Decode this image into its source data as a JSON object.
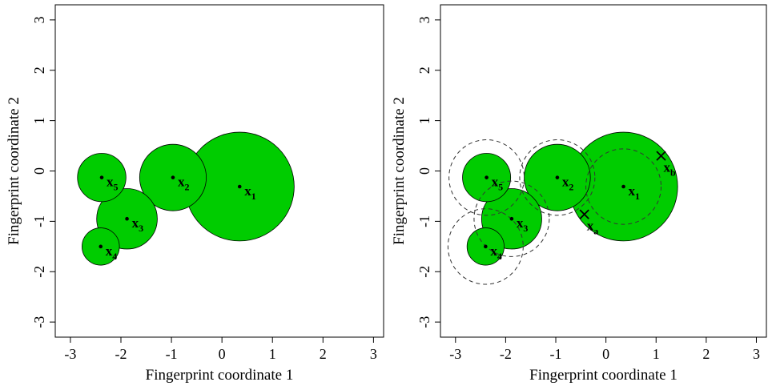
{
  "chart_data": [
    {
      "type": "scatter",
      "xlabel": "Fingerprint coordinate 1",
      "ylabel": "Fingerprint coordinate 2",
      "xlim": [
        -3.3,
        3.2
      ],
      "ylim": [
        -3.3,
        3.3
      ],
      "xticks": [
        "-3",
        "-2",
        "-1",
        "0",
        "1",
        "2",
        "3"
      ],
      "yticks": [
        "-3",
        "-2",
        "-1",
        "0",
        "1",
        "2",
        "3"
      ],
      "grid": false,
      "fill_color": "#00cc00",
      "points": [
        {
          "base": "x",
          "sub": "1",
          "x": 0.35,
          "y": -0.31,
          "radius": 1.08
        },
        {
          "base": "x",
          "sub": "2",
          "x": -0.97,
          "y": -0.13,
          "radius": 0.66
        },
        {
          "base": "x",
          "sub": "3",
          "x": -1.88,
          "y": -0.95,
          "radius": 0.6
        },
        {
          "base": "x",
          "sub": "4",
          "x": -2.4,
          "y": -1.5,
          "radius": 0.37
        },
        {
          "base": "x",
          "sub": "5",
          "x": -2.38,
          "y": -0.13,
          "radius": 0.48
        }
      ],
      "dashed_circles": [],
      "markers": []
    },
    {
      "type": "scatter",
      "xlabel": "Fingerprint coordinate 1",
      "ylabel": "Fingerprint coordinate 2",
      "xlim": [
        -3.3,
        3.2
      ],
      "ylim": [
        -3.3,
        3.3
      ],
      "xticks": [
        "-3",
        "-2",
        "-1",
        "0",
        "1",
        "2",
        "3"
      ],
      "yticks": [
        "-3",
        "-2",
        "-1",
        "0",
        "1",
        "2",
        "3"
      ],
      "grid": false,
      "fill_color": "#00cc00",
      "points": [
        {
          "base": "x",
          "sub": "1",
          "x": 0.35,
          "y": -0.31,
          "radius": 1.08
        },
        {
          "base": "x",
          "sub": "2",
          "x": -0.97,
          "y": -0.13,
          "radius": 0.66
        },
        {
          "base": "x",
          "sub": "3",
          "x": -1.88,
          "y": -0.95,
          "radius": 0.6
        },
        {
          "base": "x",
          "sub": "4",
          "x": -2.4,
          "y": -1.5,
          "radius": 0.37
        },
        {
          "base": "x",
          "sub": "5",
          "x": -2.38,
          "y": -0.13,
          "radius": 0.48
        }
      ],
      "dashed_circles": [
        {
          "x": 0.35,
          "y": -0.31,
          "radius": 0.75
        },
        {
          "x": -0.97,
          "y": -0.13,
          "radius": 0.75
        },
        {
          "x": -1.88,
          "y": -0.95,
          "radius": 0.75
        },
        {
          "x": -2.4,
          "y": -1.5,
          "radius": 0.75
        },
        {
          "x": -2.38,
          "y": -0.13,
          "radius": 0.75
        }
      ],
      "markers": [
        {
          "base": "x",
          "sub": "a",
          "x": -0.43,
          "y": -0.86
        },
        {
          "base": "x",
          "sub": "b",
          "x": 1.1,
          "y": 0.3
        }
      ]
    }
  ]
}
